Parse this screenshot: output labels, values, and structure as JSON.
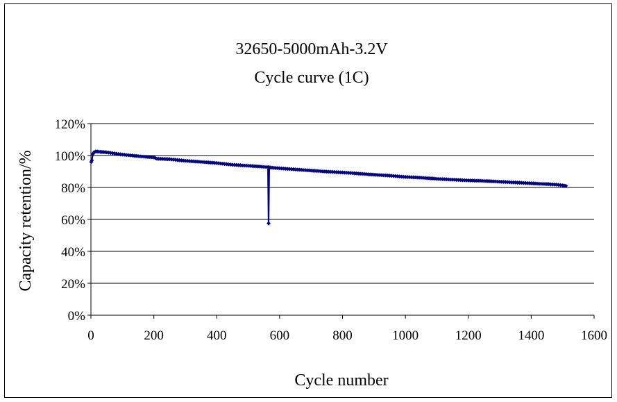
{
  "chart_data": {
    "type": "line",
    "title": "32650-5000mAh-3.2V",
    "subtitle": "Cycle curve (1C)",
    "xlabel": "Cycle number",
    "ylabel": "Capacity retention/%",
    "xlim": [
      0,
      1600
    ],
    "ylim": [
      0,
      120
    ],
    "x_ticks": [
      "0",
      "200",
      "400",
      "600",
      "800",
      "1000",
      "1200",
      "1400",
      "1600"
    ],
    "y_ticks": [
      "0%",
      "20%",
      "40%",
      "60%",
      "80%",
      "100%",
      "120%"
    ],
    "grid": true,
    "legend": "none",
    "series": [
      {
        "color": "#000080",
        "marker": "diamond",
        "x": [
          1,
          3,
          6,
          10,
          15,
          20,
          30,
          40,
          50,
          75,
          100,
          150,
          200,
          210,
          250,
          300,
          350,
          400,
          450,
          500,
          550,
          563,
          565,
          567,
          570,
          600,
          650,
          700,
          750,
          800,
          850,
          900,
          950,
          1000,
          1050,
          1100,
          1150,
          1200,
          1250,
          1300,
          1350,
          1400,
          1450,
          1480,
          1500,
          1510
        ],
        "y": [
          96,
          97,
          101,
          102,
          102.5,
          102.5,
          102.3,
          102.2,
          102,
          101.3,
          100.6,
          99.6,
          98.8,
          98,
          97.7,
          96.7,
          96,
          95.3,
          94.2,
          93.6,
          92.9,
          92.7,
          57.5,
          92.6,
          92.5,
          92,
          91.3,
          90.6,
          89.9,
          89.4,
          88.7,
          88,
          87.4,
          86.6,
          86.1,
          85.4,
          84.9,
          84.4,
          84.1,
          83.6,
          83.1,
          82.6,
          82.1,
          81.8,
          81.3,
          81
        ]
      }
    ]
  }
}
